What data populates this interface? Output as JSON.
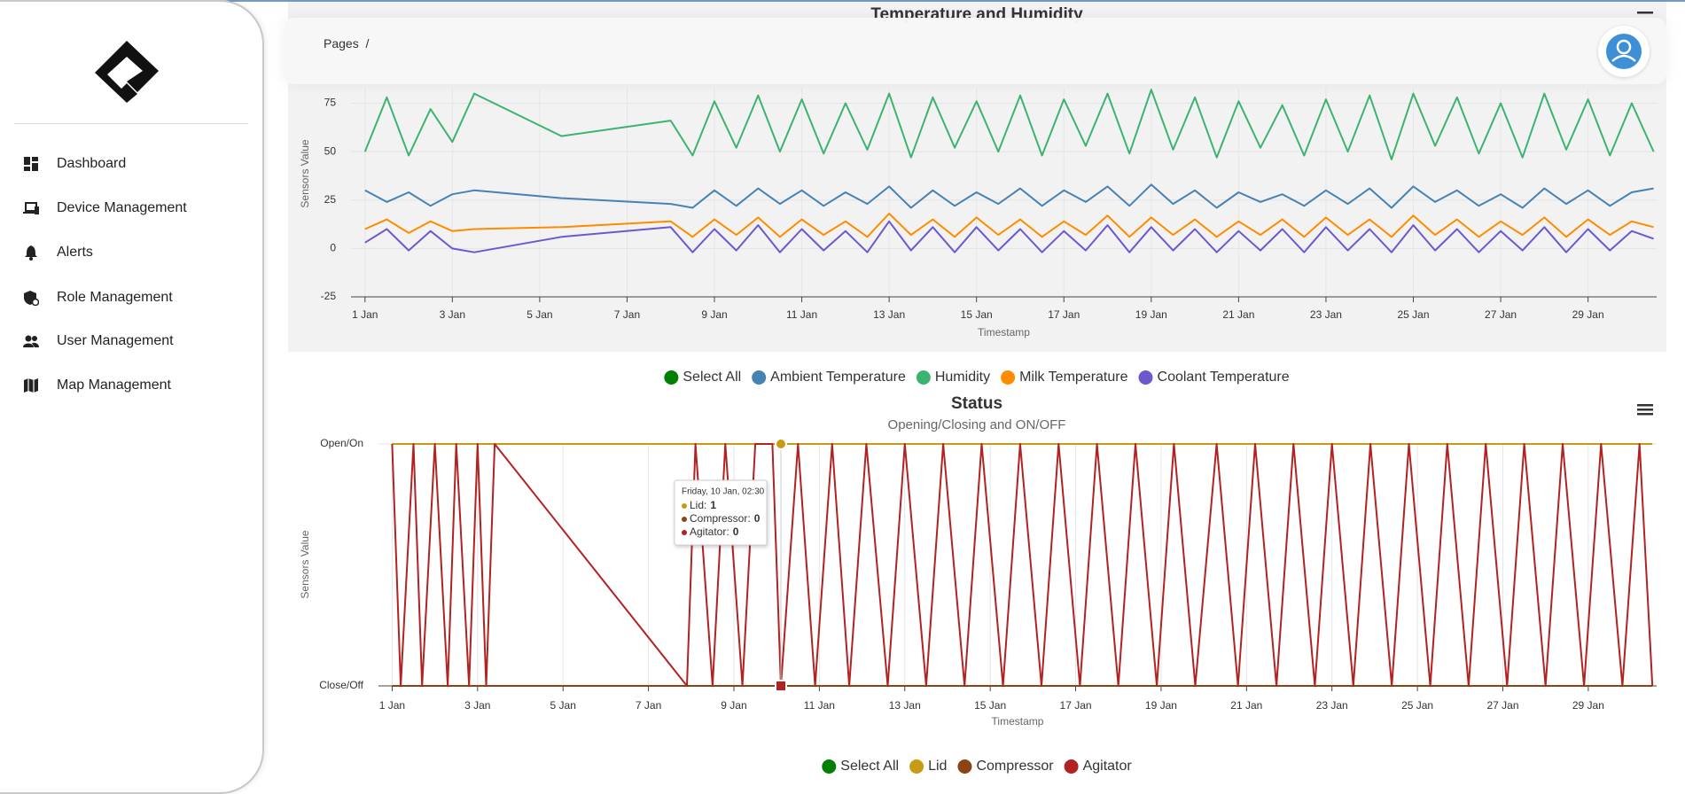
{
  "sidebar": {
    "nav": [
      "Dashboard",
      "Device Management",
      "Alerts",
      "Role Management",
      "User Management",
      "Map Management"
    ]
  },
  "header": {
    "breadcrumb": "Pages",
    "separator": "/"
  },
  "chart_data": [
    {
      "type": "line",
      "title": "Temperature and Humidity",
      "x_label": "Timestamp",
      "y_label": "Sensors Value",
      "legend_select_all": "Select All",
      "select_all_color": "#008000",
      "grid": true,
      "x": [
        1,
        1.5,
        2,
        2.5,
        3,
        3.5,
        5.5,
        8,
        8.5,
        9,
        9.5,
        10,
        10.5,
        11,
        11.5,
        12,
        12.5,
        13,
        13.5,
        14,
        14.5,
        15,
        15.5,
        16,
        16.5,
        17,
        17.5,
        18,
        18.5,
        19,
        19.5,
        20,
        20.5,
        21,
        21.5,
        22,
        22.5,
        23,
        23.5,
        24,
        24.5,
        25,
        25.5,
        26,
        26.5,
        27,
        27.5,
        28,
        28.5,
        29,
        29.5,
        30,
        30.5
      ],
      "xlim": [
        0.68,
        30.57
      ],
      "xticks": [
        {
          "value": 1,
          "label": "1 Jan"
        },
        {
          "value": 3,
          "label": "3 Jan"
        },
        {
          "value": 5,
          "label": "5 Jan"
        },
        {
          "value": 7,
          "label": "7 Jan"
        },
        {
          "value": 9,
          "label": "9 Jan"
        },
        {
          "value": 11,
          "label": "11 Jan"
        },
        {
          "value": 13,
          "label": "13 Jan"
        },
        {
          "value": 15,
          "label": "15 Jan"
        },
        {
          "value": 17,
          "label": "17 Jan"
        },
        {
          "value": 19,
          "label": "19 Jan"
        },
        {
          "value": 21,
          "label": "21 Jan"
        },
        {
          "value": 23,
          "label": "23 Jan"
        },
        {
          "value": 25,
          "label": "25 Jan"
        },
        {
          "value": 27,
          "label": "27 Jan"
        },
        {
          "value": 29,
          "label": "29 Jan"
        }
      ],
      "ylim": [
        -25,
        83
      ],
      "yticks": [
        -25,
        0,
        25,
        50,
        75
      ],
      "series": [
        {
          "name": "Ambient Temperature",
          "color": "#4682b4",
          "values": [
            30,
            24,
            29,
            22,
            28,
            30,
            26,
            23,
            21,
            30,
            22,
            31,
            23,
            30,
            22,
            29,
            23,
            32,
            21,
            30,
            22,
            29,
            23,
            31,
            22,
            30,
            24,
            32,
            22,
            33,
            23,
            30,
            21,
            29,
            24,
            28,
            22,
            30,
            23,
            31,
            21,
            32,
            24,
            30,
            22,
            28,
            21,
            31,
            23,
            30,
            22,
            29,
            31
          ]
        },
        {
          "name": "Humidity",
          "color": "#3cb371",
          "values": [
            50,
            78,
            48,
            72,
            55,
            80,
            58,
            66,
            48,
            76,
            52,
            79,
            50,
            77,
            49,
            75,
            51,
            80,
            47,
            78,
            52,
            76,
            50,
            79,
            48,
            77,
            53,
            80,
            49,
            82,
            51,
            78,
            47,
            76,
            52,
            74,
            48,
            77,
            50,
            79,
            46,
            80,
            53,
            78,
            49,
            75,
            47,
            80,
            51,
            77,
            48,
            75,
            50
          ]
        },
        {
          "name": "Milk Temperature",
          "color": "#ff8c00",
          "values": [
            10,
            15,
            8,
            14,
            9,
            10,
            11,
            14,
            6,
            15,
            7,
            16,
            6,
            15,
            7,
            14,
            6,
            18,
            7,
            15,
            6,
            16,
            7,
            15,
            6,
            14,
            7,
            17,
            6,
            16,
            7,
            15,
            6,
            14,
            7,
            15,
            6,
            16,
            7,
            15,
            6,
            17,
            7,
            15,
            6,
            14,
            7,
            16,
            6,
            15,
            7,
            14,
            11
          ]
        },
        {
          "name": "Coolant Temperature",
          "color": "#6a5acd",
          "values": [
            3,
            10,
            -1,
            9,
            0,
            -2,
            6,
            11,
            -2,
            10,
            -1,
            12,
            -2,
            10,
            -1,
            9,
            -2,
            14,
            -1,
            11,
            -2,
            11,
            -1,
            10,
            -2,
            9,
            -1,
            12,
            -2,
            11,
            -1,
            10,
            -2,
            9,
            -1,
            10,
            -2,
            11,
            -1,
            10,
            -2,
            12,
            -1,
            10,
            -2,
            9,
            -1,
            11,
            -2,
            10,
            -1,
            9,
            5
          ]
        }
      ]
    },
    {
      "type": "line",
      "title": "Status",
      "subtitle": "Opening/Closing and ON/OFF",
      "x_label": "Timestamp",
      "y_label": "Sensors Value",
      "legend_select_all": "Select All",
      "select_all_color": "#008000",
      "grid": true,
      "x": [
        1,
        1.2,
        1.5,
        1.7,
        2,
        2.3,
        2.5,
        2.8,
        3,
        3.2,
        3.4,
        7.9,
        8.1,
        8.5,
        8.8,
        9.2,
        9.5,
        9.9,
        10.1,
        10.5,
        10.9,
        11.3,
        11.7,
        12.1,
        12.6,
        13,
        13.5,
        13.9,
        14.4,
        14.8,
        15.3,
        15.7,
        16.2,
        16.6,
        17.1,
        17.5,
        18,
        18.4,
        18.9,
        19.3,
        19.8,
        20.3,
        20.8,
        21.2,
        21.7,
        22.1,
        22.6,
        23,
        23.5,
        23.9,
        24.4,
        24.8,
        25.3,
        25.7,
        26.2,
        26.6,
        27.1,
        27.5,
        28,
        28.4,
        28.9,
        29.3,
        29.8,
        30.2,
        30.5
      ],
      "xlim": [
        0.68,
        30.6
      ],
      "xticks": [
        {
          "value": 1,
          "label": "1 Jan"
        },
        {
          "value": 3,
          "label": "3 Jan"
        },
        {
          "value": 5,
          "label": "5 Jan"
        },
        {
          "value": 7,
          "label": "7 Jan"
        },
        {
          "value": 9,
          "label": "9 Jan"
        },
        {
          "value": 11,
          "label": "11 Jan"
        },
        {
          "value": 13,
          "label": "13 Jan"
        },
        {
          "value": 15,
          "label": "15 Jan"
        },
        {
          "value": 17,
          "label": "17 Jan"
        },
        {
          "value": 19,
          "label": "19 Jan"
        },
        {
          "value": 21,
          "label": "21 Jan"
        },
        {
          "value": 23,
          "label": "23 Jan"
        },
        {
          "value": 25,
          "label": "25 Jan"
        },
        {
          "value": 27,
          "label": "27 Jan"
        },
        {
          "value": 29,
          "label": "29 Jan"
        }
      ],
      "ylim": [
        0,
        1
      ],
      "yticks": [
        {
          "value": 0,
          "label": "Close/Off"
        },
        {
          "value": 1,
          "label": "Open/On"
        }
      ],
      "series": [
        {
          "name": "Lid",
          "color": "#c89b14",
          "values": [
            1,
            1,
            1,
            1,
            1,
            1,
            1,
            1,
            1,
            1,
            1,
            1,
            1,
            1,
            1,
            1,
            1,
            1,
            1,
            1,
            1,
            1,
            1,
            1,
            1,
            1,
            1,
            1,
            1,
            1,
            1,
            1,
            1,
            1,
            1,
            1,
            1,
            1,
            1,
            1,
            1,
            1,
            1,
            1,
            1,
            1,
            1,
            1,
            1,
            1,
            1,
            1,
            1,
            1,
            1,
            1,
            1,
            1,
            1,
            1,
            1,
            1,
            1,
            1,
            1
          ]
        },
        {
          "name": "Compressor",
          "color": "#8b4513",
          "values": [
            0,
            0,
            0,
            0,
            0,
            0,
            0,
            0,
            0,
            0,
            0,
            0,
            0,
            0,
            0,
            0,
            0,
            0,
            0,
            0,
            0,
            0,
            0,
            0,
            0,
            0,
            0,
            0,
            0,
            0,
            0,
            0,
            0,
            0,
            0,
            0,
            0,
            0,
            0,
            0,
            0,
            0,
            0,
            0,
            0,
            0,
            0,
            0,
            0,
            0,
            0,
            0,
            0,
            0,
            0,
            0,
            0,
            0,
            0,
            0,
            0,
            0,
            0,
            0,
            0
          ]
        },
        {
          "name": "Agitator",
          "color": "#b22222",
          "values": [
            1,
            0,
            1,
            0,
            1,
            0,
            1,
            0,
            1,
            0,
            1,
            0,
            1,
            0,
            1,
            0,
            1,
            1,
            0,
            1,
            0,
            1,
            0,
            1,
            0,
            1,
            0,
            1,
            0,
            1,
            0,
            1,
            0,
            1,
            0,
            1,
            0,
            1,
            0,
            1,
            0,
            1,
            0,
            1,
            0,
            1,
            0,
            1,
            0,
            1,
            0,
            1,
            0,
            1,
            0,
            1,
            0,
            1,
            0,
            1,
            0,
            1,
            0,
            1,
            0
          ]
        }
      ],
      "hover_index": 18,
      "tooltip": {
        "title": "Friday, 10 Jan, 02:30",
        "items": [
          {
            "label": "Lid:",
            "value": 1
          },
          {
            "label": "Compressor:",
            "value": 0
          },
          {
            "label": "Agitator:",
            "value": 0
          }
        ]
      }
    }
  ]
}
